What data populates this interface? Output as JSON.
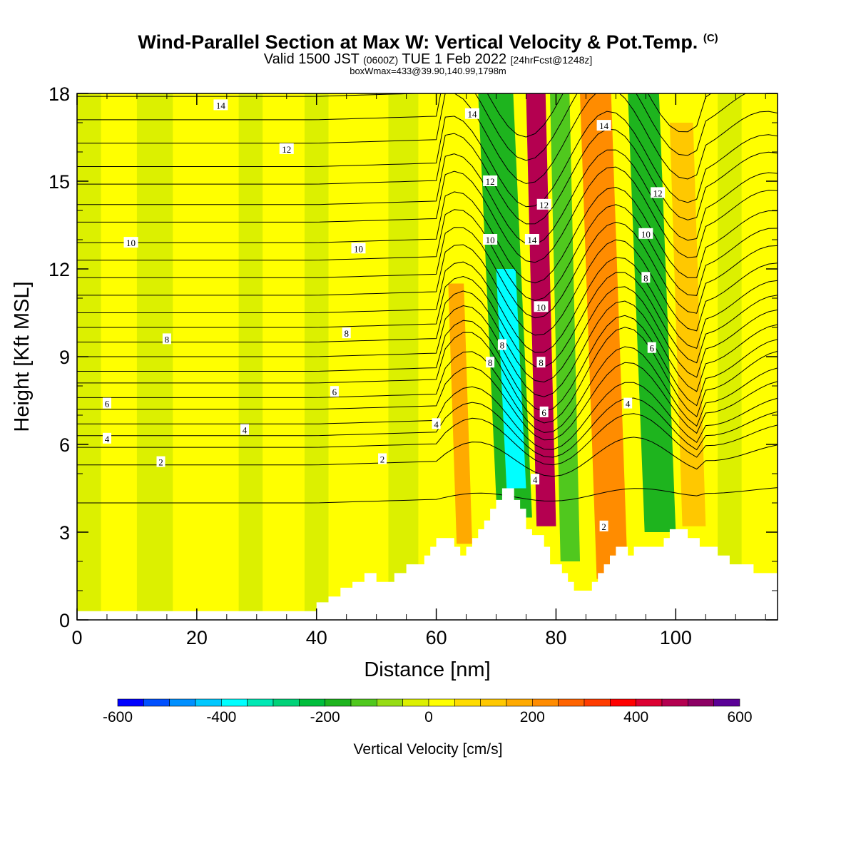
{
  "header": {
    "title": "Wind-Parallel Section at Max W: Vertical Velocity & Pot.Temp.",
    "title_mark": "(C)",
    "valid_prefix": "Valid 1500 JST",
    "valid_zulu": "(0600Z)",
    "valid_date": "TUE 1 Feb 2022",
    "forecast": "[24hrFcst@1248z]",
    "box_info": "boxWmax=433@39.90,140.99,1798m"
  },
  "chart_data": {
    "type": "heatmap",
    "xlabel": "Distance [nm]",
    "ylabel": "Height [Kft MSL]",
    "xlim": [
      0,
      117
    ],
    "ylim": [
      0,
      18
    ],
    "x_ticks": [
      0,
      20,
      40,
      60,
      80,
      100
    ],
    "y_ticks": [
      0,
      3,
      6,
      9,
      12,
      15,
      18
    ],
    "colorbar": {
      "title": "Vertical Velocity [cm/s]",
      "range": [
        -600,
        600
      ],
      "step": 50,
      "tick_labels": [
        "-600",
        "-400",
        "-200",
        "0",
        "200",
        "400",
        "600"
      ],
      "colors": [
        "#0000ff",
        "#0050ff",
        "#0090ff",
        "#00c8ff",
        "#00ffff",
        "#00e8b4",
        "#00d278",
        "#00be3c",
        "#1eb41e",
        "#50c81e",
        "#96dc14",
        "#dcf000",
        "#ffff00",
        "#ffdc00",
        "#ffc800",
        "#ffaa00",
        "#ff8c00",
        "#ff6400",
        "#ff3c00",
        "#ff0000",
        "#dc0032",
        "#b40050",
        "#8c0064",
        "#5a0096"
      ]
    },
    "terrain_kft": [
      [
        0,
        0.3
      ],
      [
        40,
        0.3
      ],
      [
        40,
        0.6
      ],
      [
        42,
        0.6
      ],
      [
        42,
        0.8
      ],
      [
        44,
        0.8
      ],
      [
        44,
        1.1
      ],
      [
        46,
        1.1
      ],
      [
        46,
        1.3
      ],
      [
        48,
        1.3
      ],
      [
        48,
        1.6
      ],
      [
        50,
        1.6
      ],
      [
        50,
        1.3
      ],
      [
        53,
        1.3
      ],
      [
        53,
        1.6
      ],
      [
        55,
        1.6
      ],
      [
        55,
        1.9
      ],
      [
        58,
        1.9
      ],
      [
        58,
        2.2
      ],
      [
        59,
        2.2
      ],
      [
        59,
        2.5
      ],
      [
        60,
        2.5
      ],
      [
        60,
        2.8
      ],
      [
        63,
        2.8
      ],
      [
        63,
        2.5
      ],
      [
        64,
        2.5
      ],
      [
        64,
        2.2
      ],
      [
        65,
        2.2
      ],
      [
        65,
        2.5
      ],
      [
        66,
        2.5
      ],
      [
        66,
        2.8
      ],
      [
        67,
        2.8
      ],
      [
        67,
        3.1
      ],
      [
        68,
        3.1
      ],
      [
        68,
        3.4
      ],
      [
        69,
        3.4
      ],
      [
        69,
        3.8
      ],
      [
        70,
        3.8
      ],
      [
        70,
        4.1
      ],
      [
        71,
        4.1
      ],
      [
        71,
        4.5
      ],
      [
        73,
        4.5
      ],
      [
        73,
        4.1
      ],
      [
        74,
        4.1
      ],
      [
        74,
        3.8
      ],
      [
        75,
        3.8
      ],
      [
        75,
        3.1
      ],
      [
        76,
        3.1
      ],
      [
        76,
        2.9
      ],
      [
        78,
        2.9
      ],
      [
        78,
        2.5
      ],
      [
        79,
        2.5
      ],
      [
        79,
        1.9
      ],
      [
        81,
        1.9
      ],
      [
        81,
        1.6
      ],
      [
        82,
        1.6
      ],
      [
        82,
        1.3
      ],
      [
        83,
        1.3
      ],
      [
        83,
        1.0
      ],
      [
        86,
        1.0
      ],
      [
        86,
        1.3
      ],
      [
        87,
        1.3
      ],
      [
        87,
        1.6
      ],
      [
        88,
        1.6
      ],
      [
        88,
        1.9
      ],
      [
        89,
        1.9
      ],
      [
        89,
        2.2
      ],
      [
        90,
        2.2
      ],
      [
        90,
        2.5
      ],
      [
        92,
        2.5
      ],
      [
        92,
        2.2
      ],
      [
        93,
        2.2
      ],
      [
        93,
        2.5
      ],
      [
        98,
        2.5
      ],
      [
        98,
        2.8
      ],
      [
        99,
        2.8
      ],
      [
        99,
        3.1
      ],
      [
        102,
        3.1
      ],
      [
        102,
        2.8
      ],
      [
        104,
        2.8
      ],
      [
        104,
        2.5
      ],
      [
        107,
        2.5
      ],
      [
        107,
        2.2
      ],
      [
        109,
        2.2
      ],
      [
        109,
        1.9
      ],
      [
        113,
        1.9
      ],
      [
        113,
        1.6
      ],
      [
        117,
        1.6
      ],
      [
        117,
        0
      ]
    ],
    "w_cells": [
      {
        "x": [
          62,
          66
        ],
        "y": [
          2.6,
          11.5
        ],
        "w": 180
      },
      {
        "x": [
          67,
          76
        ],
        "y": [
          3.5,
          18
        ],
        "w": -200
      },
      {
        "x": [
          70,
          75
        ],
        "y": [
          4.5,
          12
        ],
        "w": -380
      },
      {
        "x": [
          75,
          80
        ],
        "y": [
          3.2,
          18
        ],
        "w": 450
      },
      {
        "x": [
          79,
          84
        ],
        "y": [
          2,
          18
        ],
        "w": -150
      },
      {
        "x": [
          84,
          92
        ],
        "y": [
          1.4,
          18
        ],
        "w": 200
      },
      {
        "x": [
          92,
          100
        ],
        "y": [
          3,
          18
        ],
        "w": -160
      },
      {
        "x": [
          99,
          105
        ],
        "y": [
          3.2,
          17
        ],
        "w": 130
      }
    ],
    "theta_contour_levels_C": [
      2,
      4,
      6,
      8,
      10,
      12,
      14
    ],
    "contour_labels": [
      {
        "text": "14",
        "x": 24,
        "y": 17.6
      },
      {
        "text": "12",
        "x": 35,
        "y": 16.1
      },
      {
        "text": "10",
        "x": 9,
        "y": 12.9
      },
      {
        "text": "10",
        "x": 47,
        "y": 12.7
      },
      {
        "text": "8",
        "x": 15,
        "y": 9.6
      },
      {
        "text": "8",
        "x": 45,
        "y": 9.8
      },
      {
        "text": "6",
        "x": 5,
        "y": 7.4
      },
      {
        "text": "6",
        "x": 43,
        "y": 7.8
      },
      {
        "text": "4",
        "x": 5,
        "y": 6.2
      },
      {
        "text": "4",
        "x": 28,
        "y": 6.5
      },
      {
        "text": "4",
        "x": 60,
        "y": 6.7
      },
      {
        "text": "2",
        "x": 14,
        "y": 5.4
      },
      {
        "text": "2",
        "x": 51,
        "y": 5.5
      },
      {
        "text": "14",
        "x": 66,
        "y": 17.3
      },
      {
        "text": "12",
        "x": 69,
        "y": 15.0
      },
      {
        "text": "10",
        "x": 69,
        "y": 13.0
      },
      {
        "text": "8",
        "x": 71,
        "y": 9.4
      },
      {
        "text": "8",
        "x": 69,
        "y": 8.8
      },
      {
        "text": "14",
        "x": 76,
        "y": 13.0
      },
      {
        "text": "12",
        "x": 78,
        "y": 14.2
      },
      {
        "text": "10",
        "x": 77.5,
        "y": 10.7
      },
      {
        "text": "8",
        "x": 77.5,
        "y": 8.8
      },
      {
        "text": "6",
        "x": 78,
        "y": 7.1
      },
      {
        "text": "4",
        "x": 76.5,
        "y": 4.8
      },
      {
        "text": "14",
        "x": 88,
        "y": 16.9
      },
      {
        "text": "12",
        "x": 97,
        "y": 14.6
      },
      {
        "text": "10",
        "x": 95,
        "y": 13.2
      },
      {
        "text": "8",
        "x": 95,
        "y": 11.7
      },
      {
        "text": "6",
        "x": 96,
        "y": 9.3
      },
      {
        "text": "4",
        "x": 92,
        "y": 7.4
      },
      {
        "text": "2",
        "x": 88,
        "y": 3.2
      }
    ]
  }
}
